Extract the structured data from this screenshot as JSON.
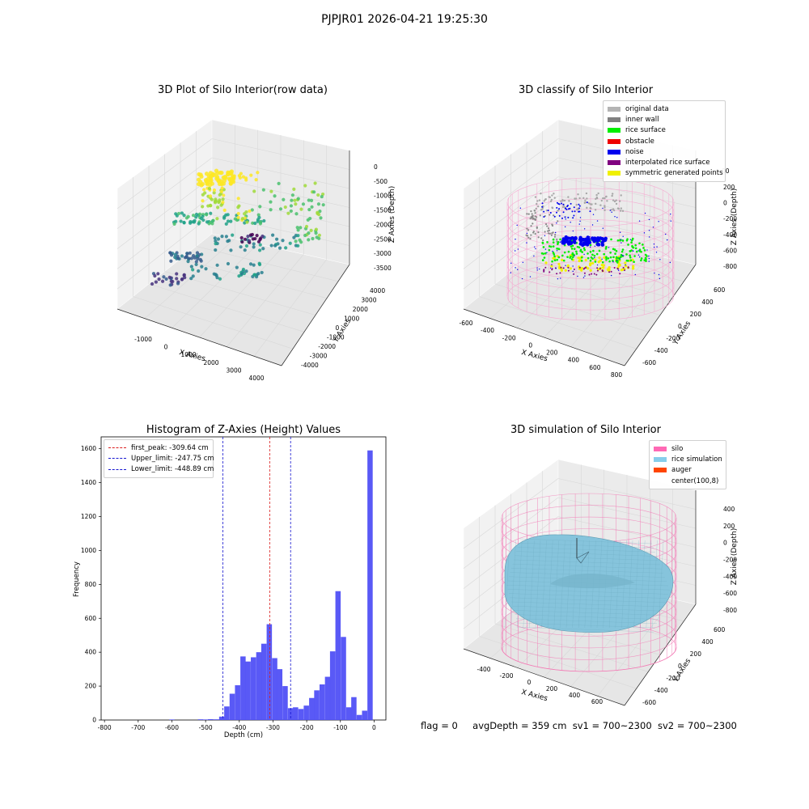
{
  "suptitle": "PJPJR01 2026-04-21 19:25:30",
  "footer": {
    "flag": "flag = 0",
    "avg": "avgDepth = 359 cm",
    "sv1": "sv1 = 700~2300",
    "sv2": "sv2 = 700~2300"
  },
  "colors": {
    "hist_bar": "#5050f5",
    "first_peak": "#dc1e1e",
    "limits": "#1515d0",
    "silo_mesh": "#f37bb5",
    "rice_sim": "#86c4dc",
    "grey_box": "#f0f0f0"
  },
  "chart_data": [
    {
      "type": "scatter",
      "projection": "3d",
      "title": "3D Plot of Silo Interior(row data)",
      "xlabel": "X Axies",
      "ylabel": "Y Axies",
      "zlabel": "Z Axies (Depth)",
      "x_ticks": [
        "-1000",
        "0",
        "1000",
        "2000",
        "3000",
        "4000"
      ],
      "y_ticks": [
        "-4000",
        "-3000",
        "-2000",
        "-1000",
        "0",
        "1000",
        "2000",
        "3000",
        "4000"
      ],
      "z_ticks": [
        "-3500",
        "-3000",
        "-2500",
        "-2000",
        "-1500",
        "-1000",
        "-500",
        "0"
      ],
      "xlim": [
        -1500,
        4500
      ],
      "ylim": [
        -4000,
        4000
      ],
      "zlim": [
        -3700,
        0
      ],
      "colormap": "viridis",
      "grid": true
    },
    {
      "type": "scatter",
      "projection": "3d",
      "title": "3D classify of Silo Interior",
      "xlabel": "X Axies",
      "ylabel": "Y Axies",
      "zlabel": "Z Axies (Depth)",
      "x_ticks": [
        "-600",
        "-400",
        "-200",
        "0",
        "200",
        "400",
        "600",
        "800"
      ],
      "y_ticks": [
        "-600",
        "-400",
        "-200",
        "0",
        "200",
        "400",
        "600"
      ],
      "z_ticks": [
        "-800",
        "-600",
        "-400",
        "-200",
        "0",
        "200"
      ],
      "z_tick_partial": "00",
      "xlim": [
        -600,
        800
      ],
      "ylim": [
        -600,
        600
      ],
      "zlim": [
        -900,
        300
      ],
      "grid": true,
      "legend_position": "upper right",
      "legend": [
        {
          "label": "original data",
          "color": "#b4b4b4"
        },
        {
          "label": "inner wall",
          "color": "#808080"
        },
        {
          "label": "rice surface",
          "color": "#00ee00"
        },
        {
          "label": "obstacle",
          "color": "#ee0000"
        },
        {
          "label": "noise",
          "color": "#0000ee"
        },
        {
          "label": "interpolated rice surface",
          "color": "#800080"
        },
        {
          "label": "symmetric generated points",
          "color": "#f0f000"
        }
      ]
    },
    {
      "type": "bar",
      "title": "Histogram of Z-Axies (Height) Values",
      "xlabel": "Depth (cm)",
      "ylabel": "Frequency",
      "xlim": [
        -810,
        35
      ],
      "ylim": [
        0,
        1670
      ],
      "x_ticks": [
        -800,
        -700,
        -600,
        -500,
        -400,
        -300,
        -200,
        -100,
        0
      ],
      "y_ticks": [
        0,
        200,
        400,
        600,
        800,
        1000,
        1200,
        1400,
        1600
      ],
      "bin_width": 15.7,
      "bins": [
        {
          "x": -600,
          "y": 3
        },
        {
          "x": -515,
          "y": 4
        },
        {
          "x": -500,
          "y": 3
        },
        {
          "x": -485,
          "y": 5
        },
        {
          "x": -468,
          "y": 4
        },
        {
          "x": -452,
          "y": 20
        },
        {
          "x": -437,
          "y": 80
        },
        {
          "x": -421,
          "y": 155
        },
        {
          "x": -405,
          "y": 205
        },
        {
          "x": -389,
          "y": 375
        },
        {
          "x": -374,
          "y": 345
        },
        {
          "x": -358,
          "y": 370
        },
        {
          "x": -342,
          "y": 400
        },
        {
          "x": -327,
          "y": 450
        },
        {
          "x": -311,
          "y": 565
        },
        {
          "x": -295,
          "y": 365
        },
        {
          "x": -280,
          "y": 300
        },
        {
          "x": -264,
          "y": 200
        },
        {
          "x": -248,
          "y": 70
        },
        {
          "x": -233,
          "y": 75
        },
        {
          "x": -217,
          "y": 65
        },
        {
          "x": -201,
          "y": 85
        },
        {
          "x": -185,
          "y": 130
        },
        {
          "x": -170,
          "y": 175
        },
        {
          "x": -154,
          "y": 210
        },
        {
          "x": -138,
          "y": 255
        },
        {
          "x": -123,
          "y": 405
        },
        {
          "x": -107,
          "y": 760
        },
        {
          "x": -91,
          "y": 490
        },
        {
          "x": -75,
          "y": 75
        },
        {
          "x": -60,
          "y": 135
        },
        {
          "x": -44,
          "y": 30
        },
        {
          "x": -28,
          "y": 55
        },
        {
          "x": -12,
          "y": 1590
        }
      ],
      "vlines": [
        {
          "label": "first_peak: -309.64 cm",
          "x": -309.64,
          "color": "#dc1e1e"
        },
        {
          "label": "Upper_limit: -247.75 cm",
          "x": -247.75,
          "color": "#1515d0"
        },
        {
          "label": "Lower_limit: -448.89 cm",
          "x": -448.89,
          "color": "#1515d0"
        }
      ],
      "legend_position": "upper left",
      "grid": false
    },
    {
      "type": "surface",
      "projection": "3d",
      "title": "3D simulation of Silo Interior",
      "xlabel": "X Axies",
      "ylabel": "Y Axies",
      "zlabel": "Z Axies (Depth)",
      "x_ticks": [
        "-400",
        "-200",
        "0",
        "200",
        "400",
        "600"
      ],
      "y_ticks": [
        "-600",
        "-400",
        "-200",
        "0",
        "200",
        "400",
        "600"
      ],
      "z_ticks": [
        "-800",
        "-600",
        "-400",
        "-200",
        "0",
        "200",
        "400"
      ],
      "grid": true,
      "legend_position": "upper right",
      "legend": [
        {
          "label": "silo",
          "color": "#ff69b4"
        },
        {
          "label": "rice simulation",
          "color": "#87ceeb"
        },
        {
          "label": "auger",
          "color": "#ff4500"
        },
        {
          "label": "center(100,8)",
          "color": ""
        }
      ]
    }
  ]
}
